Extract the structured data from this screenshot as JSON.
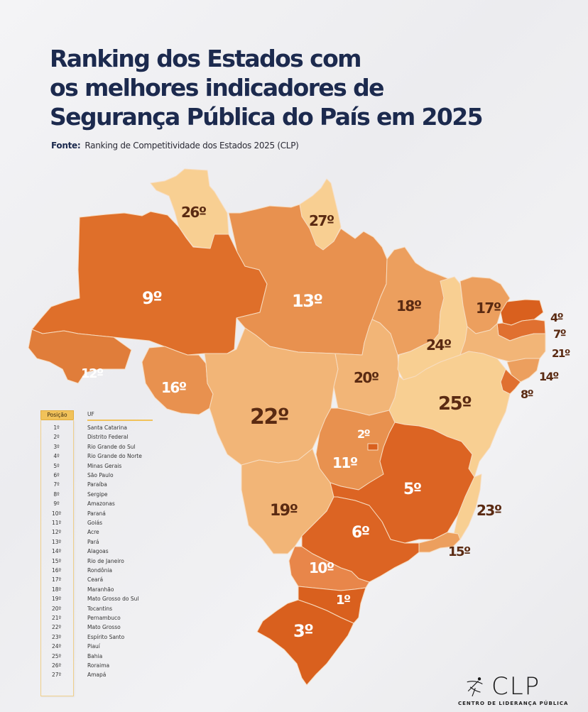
{
  "header": {
    "title_lines": [
      "Ranking dos Estados com",
      "os melhores indicadores de",
      "Segurança Pública do País em 2025"
    ],
    "source_label": "Fonte:",
    "source_text": "Ranking de Competitividade dos Estados 2025 (CLP)"
  },
  "colors": {
    "title": "#1c2a4e",
    "tier_top": "#d9601e",
    "tier_high": "#e0742f",
    "tier_mid": "#e8914f",
    "tier_low": "#f2b577",
    "tier_bottom": "#f8cf92",
    "label_dark": "#5a2a12",
    "label_light": "#ffffff",
    "legend_accent": "#f1c25a"
  },
  "map": {
    "states": [
      {
        "uf": "Santa Catarina",
        "rank": "1º"
      },
      {
        "uf": "Distrito Federal",
        "rank": "2º"
      },
      {
        "uf": "Rio Grande do Sul",
        "rank": "3º"
      },
      {
        "uf": "Rio Grande do Norte",
        "rank": "4º"
      },
      {
        "uf": "Minas Gerais",
        "rank": "5º"
      },
      {
        "uf": "São Paulo",
        "rank": "6º"
      },
      {
        "uf": "Paraíba",
        "rank": "7º"
      },
      {
        "uf": "Sergipe",
        "rank": "8º"
      },
      {
        "uf": "Amazonas",
        "rank": "9º"
      },
      {
        "uf": "Paraná",
        "rank": "10º"
      },
      {
        "uf": "Goiás",
        "rank": "11º"
      },
      {
        "uf": "Acre",
        "rank": "12º"
      },
      {
        "uf": "Pará",
        "rank": "13º"
      },
      {
        "uf": "Alagoas",
        "rank": "14º"
      },
      {
        "uf": "Rio de Janeiro",
        "rank": "15º"
      },
      {
        "uf": "Rondônia",
        "rank": "16º"
      },
      {
        "uf": "Ceará",
        "rank": "17º"
      },
      {
        "uf": "Maranhão",
        "rank": "18º"
      },
      {
        "uf": "Mato Grosso do Sul",
        "rank": "19º"
      },
      {
        "uf": "Tocantins",
        "rank": "20º"
      },
      {
        "uf": "Pernambuco",
        "rank": "21º"
      },
      {
        "uf": "Mato Grosso",
        "rank": "22º"
      },
      {
        "uf": "Espírito Santo",
        "rank": "23º"
      },
      {
        "uf": "Piauí",
        "rank": "24º"
      },
      {
        "uf": "Bahia",
        "rank": "25º"
      },
      {
        "uf": "Roraima",
        "rank": "26º"
      },
      {
        "uf": "Amapá",
        "rank": "27º"
      }
    ]
  },
  "legend": {
    "position_header": "Posição",
    "uf_header": "UF",
    "rows": [
      {
        "pos": "1º",
        "uf": "Santa Catarina"
      },
      {
        "pos": "2º",
        "uf": "Distrito Federal"
      },
      {
        "pos": "3º",
        "uf": "Rio Grande do Sul"
      },
      {
        "pos": "4º",
        "uf": "Rio Grande do Norte"
      },
      {
        "pos": "5º",
        "uf": "Minas Gerais"
      },
      {
        "pos": "6º",
        "uf": "São Paulo"
      },
      {
        "pos": "7º",
        "uf": "Paraíba"
      },
      {
        "pos": "8º",
        "uf": "Sergipe"
      },
      {
        "pos": "9º",
        "uf": "Amazonas"
      },
      {
        "pos": "10º",
        "uf": "Paraná"
      },
      {
        "pos": "11º",
        "uf": "Goiás"
      },
      {
        "pos": "12º",
        "uf": "Acre"
      },
      {
        "pos": "13º",
        "uf": "Pará"
      },
      {
        "pos": "14º",
        "uf": "Alagoas"
      },
      {
        "pos": "15º",
        "uf": "Rio de Janeiro"
      },
      {
        "pos": "16º",
        "uf": "Rondônia"
      },
      {
        "pos": "17º",
        "uf": "Ceará"
      },
      {
        "pos": "18º",
        "uf": "Maranhão"
      },
      {
        "pos": "19º",
        "uf": "Mato Grosso do Sul"
      },
      {
        "pos": "20º",
        "uf": "Tocantins"
      },
      {
        "pos": "21º",
        "uf": "Pernambuco"
      },
      {
        "pos": "22º",
        "uf": "Mato Grosso"
      },
      {
        "pos": "23º",
        "uf": "Espírito Santo"
      },
      {
        "pos": "24º",
        "uf": "Piauí"
      },
      {
        "pos": "25º",
        "uf": "Bahia"
      },
      {
        "pos": "26º",
        "uf": "Roraima"
      },
      {
        "pos": "27º",
        "uf": "Amapá"
      }
    ]
  },
  "logo": {
    "wordmark": "CLP",
    "subtitle": "CENTRO DE LIDERANÇA PÚBLICA"
  }
}
